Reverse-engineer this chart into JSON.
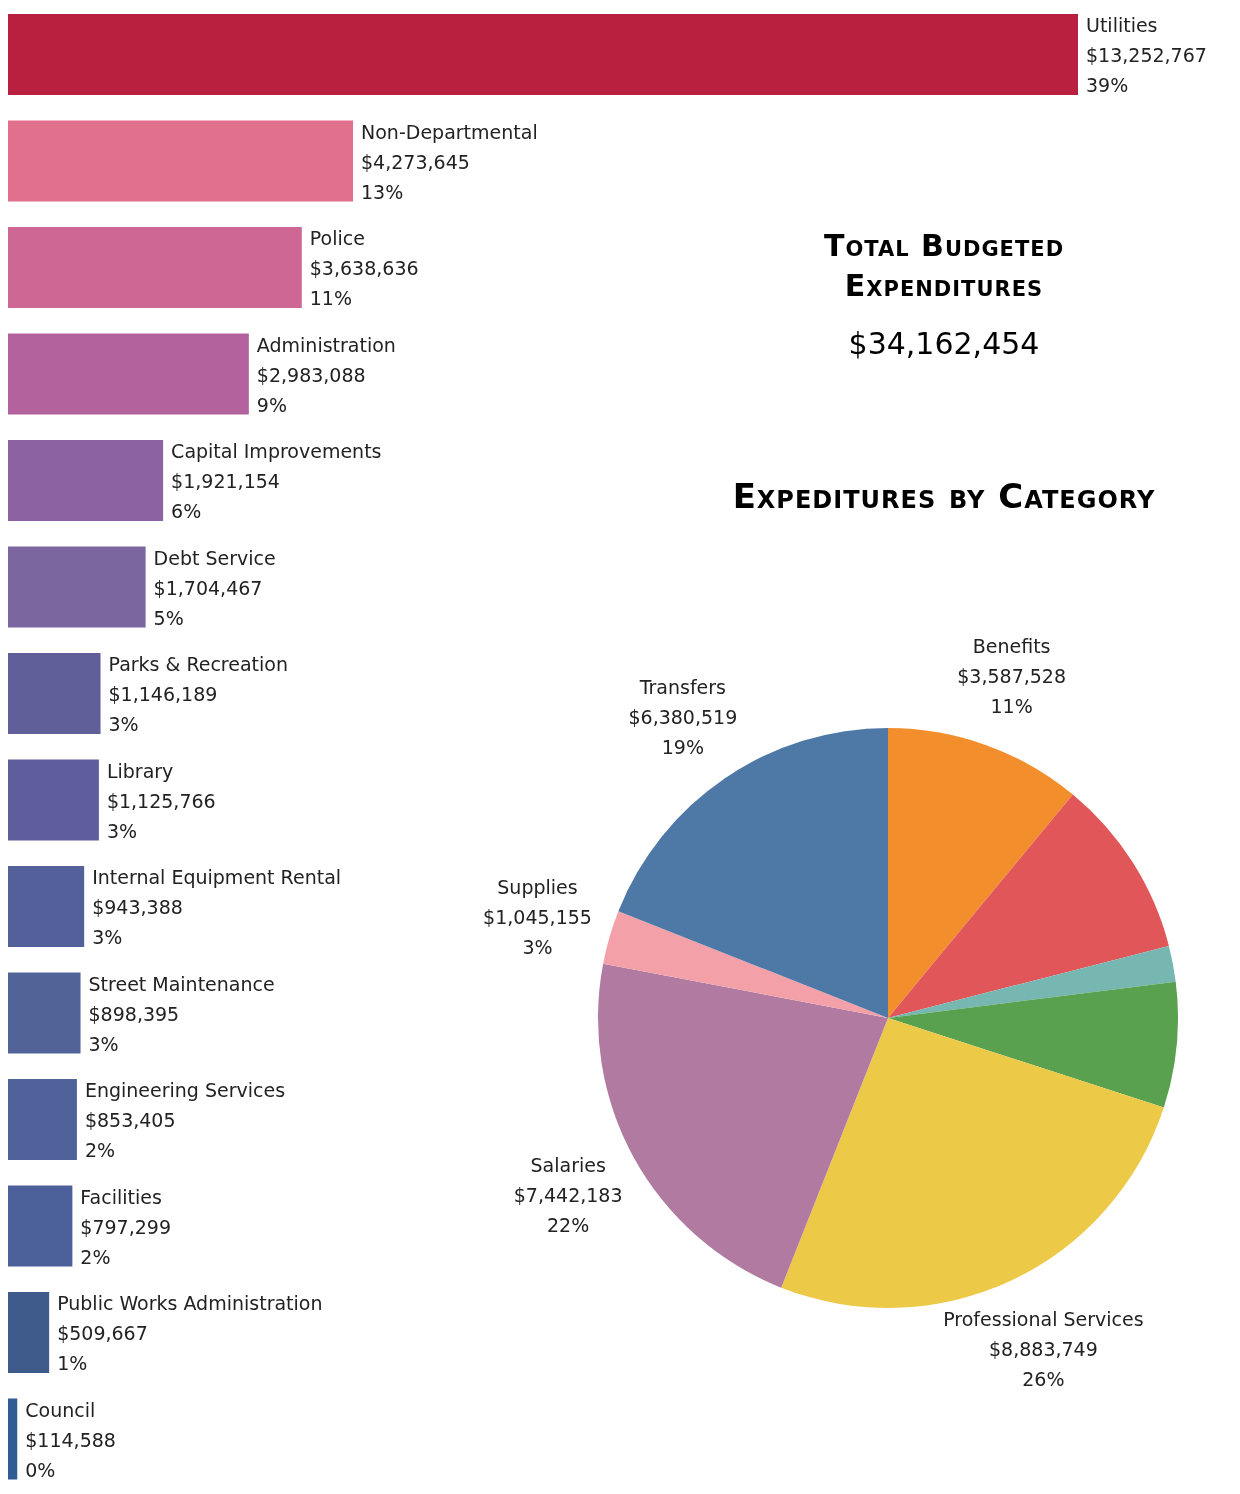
{
  "chart_data": [
    {
      "type": "bar",
      "orientation": "horizontal",
      "title": "Total Budgeted Expenditures",
      "subtitle": "$34,162,454",
      "categories": [
        "Utilities",
        "Non-Departmental",
        "Police",
        "Administration",
        "Capital Improvements",
        "Debt Service",
        "Parks & Recreation",
        "Library",
        "Internal Equipment Rental",
        "Street Maintenance",
        "Engineering Services",
        "Facilities",
        "Public Works Administration",
        "Council"
      ],
      "values": [
        13252767,
        4273645,
        3638636,
        2983088,
        1921154,
        1704467,
        1146189,
        1125766,
        943388,
        898395,
        853405,
        797299,
        509667,
        114588
      ],
      "value_labels": [
        "$13,252,767\n39%",
        "$4,273,645\n13%",
        "$3,638,636\n11%",
        "$2,983,088\n9%",
        "$1,921,154\n6%",
        "$1,704,467\n5%",
        "$1,146,189\n3%",
        "$1,125,766\n3%",
        "$943,388\n3%",
        "$898,395\n3%",
        "$853,405\n2%",
        "$797,299\n2%",
        "$509,667\n1%",
        "$114,588\n0%"
      ],
      "colors": [
        "#b91f3f",
        "#e0708c",
        "#cf6795",
        "#b4629e",
        "#8c62a2",
        "#7c66a0",
        "#605f9a",
        "#5d5e9b",
        "#53609a",
        "#526398",
        "#4f6299",
        "#4b5f98",
        "#3e5b8c",
        "#2f5d93"
      ]
    },
    {
      "type": "pie",
      "title": "Expeditures by Category",
      "categories": [
        "Benefits",
        null,
        null,
        null,
        "Professional Services",
        "Salaries",
        "Supplies",
        "Transfers"
      ],
      "values": [
        11,
        10,
        2,
        7,
        26,
        22,
        3,
        19
      ],
      "value_labels": [
        "$3,587,528\n11%",
        null,
        null,
        null,
        "$8,883,749\n26%",
        "$7,442,183\n22%",
        "$1,045,155\n3%",
        "$6,380,519\n19%"
      ],
      "colors": [
        "#f28e2b",
        "#e15759",
        "#76b7b2",
        "#59a14f",
        "#edc948",
        "#b07aa1",
        "#f4a0a8",
        "#4e79a7"
      ]
    }
  ]
}
